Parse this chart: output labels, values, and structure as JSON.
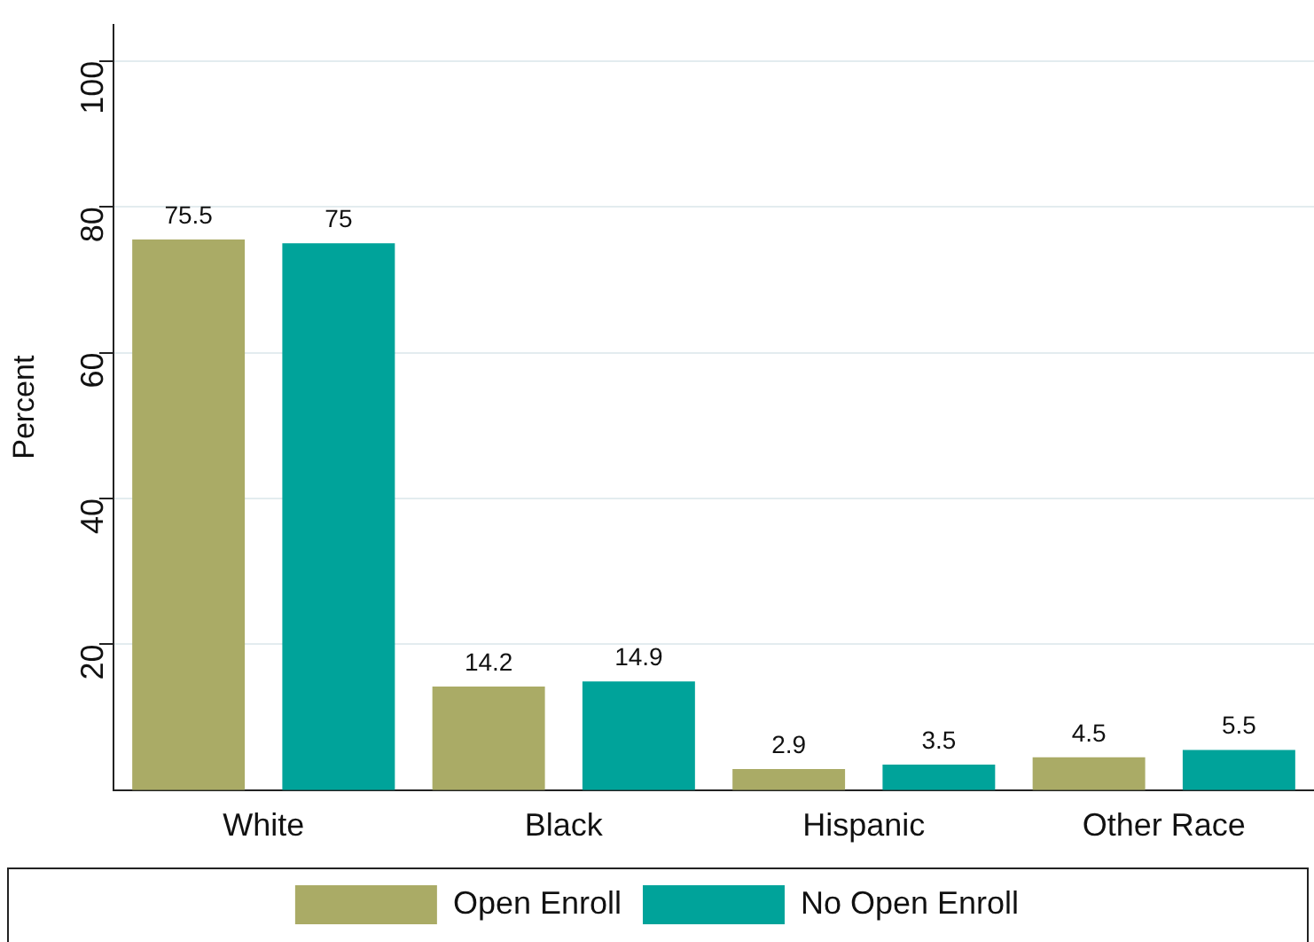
{
  "chart_data": {
    "type": "bar",
    "ylabel": "Percent",
    "categories": [
      "White",
      "Black",
      "Hispanic",
      "Other Race"
    ],
    "series": [
      {
        "name": "Open Enroll",
        "color": "#aaab66",
        "values": [
          75.5,
          14.2,
          2.9,
          4.5
        ]
      },
      {
        "name": "No Open Enroll",
        "color": "#00a39a",
        "values": [
          75,
          14.9,
          3.5,
          5.5
        ]
      }
    ],
    "ylim": [
      0,
      105
    ],
    "yticks": [
      20,
      40,
      60,
      80,
      100
    ],
    "grid": "y",
    "legend": "bottom",
    "data_labels": true
  }
}
